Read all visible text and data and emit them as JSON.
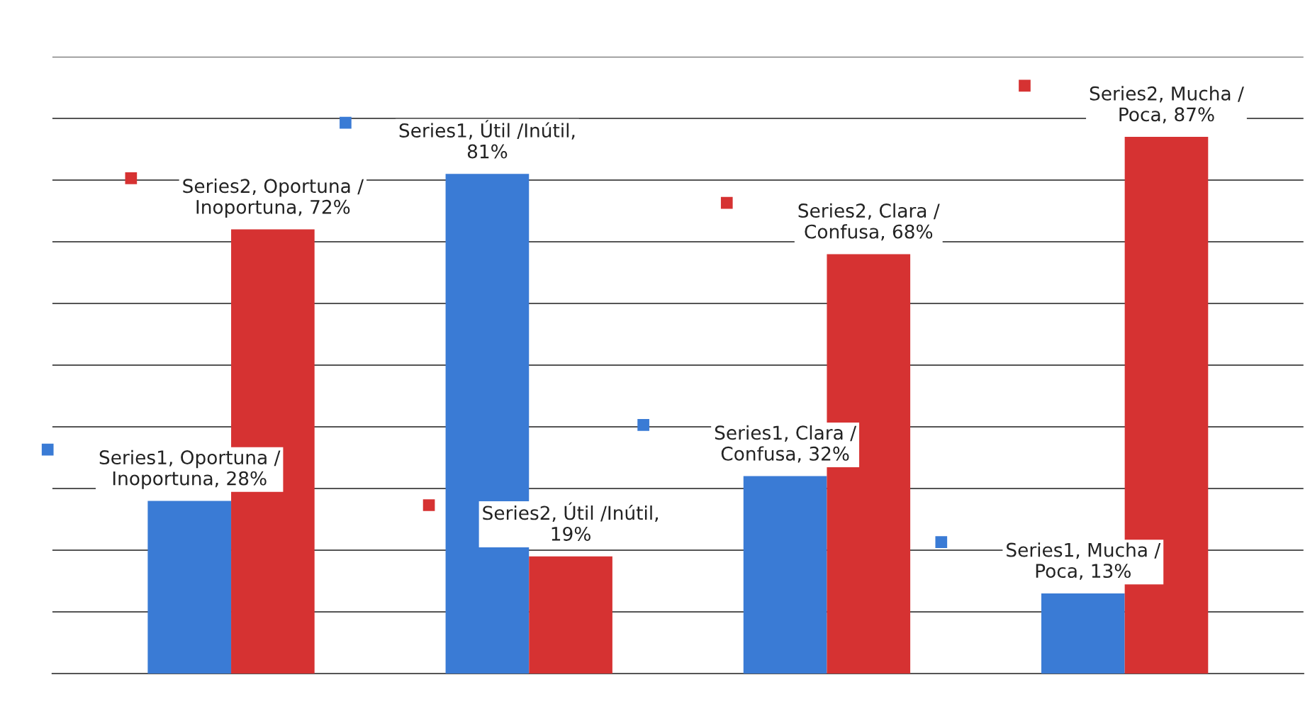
{
  "chart_data": {
    "type": "bar",
    "categories": [
      null,
      null,
      null,
      null
    ],
    "series": [
      {
        "color": "#3a7bd5",
        "values": [
          28,
          81,
          32,
          13
        ],
        "value_labels": [
          "Series1, Oportuna /\nInoportuna, 28%",
          "Series1, Útil /Inútil,\n81%",
          "Series1, Clara /\nConfusa, 32%",
          "Series1, Mucha /\nPoca, 13%"
        ]
      },
      {
        "color": "#d63232",
        "values": [
          72,
          19,
          68,
          87
        ],
        "value_labels": [
          "Series2, Oportuna /\nInoportuna, 72%",
          "Series2, Útil /Inútil,\n19%",
          "Series2, Clara /\nConfusa, 68%",
          "Series2, Mucha /\nPoca, 87%"
        ]
      }
    ],
    "ylim": [
      0,
      100
    ],
    "yticks": [
      {
        "value": 0,
        "label": null
      },
      {
        "value": 10,
        "label": null
      },
      {
        "value": 20,
        "label": null
      },
      {
        "value": 30,
        "label": null
      },
      {
        "value": 40,
        "label": null
      },
      {
        "value": 50,
        "label": null
      },
      {
        "value": 60,
        "label": null
      },
      {
        "value": 70,
        "label": null
      },
      {
        "value": 80,
        "label": null
      },
      {
        "value": 90,
        "label": null
      },
      {
        "value": 100,
        "label": null
      }
    ],
    "grid": "y"
  }
}
